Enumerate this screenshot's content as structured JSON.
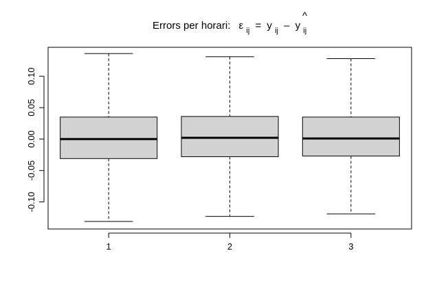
{
  "chart_data": {
    "type": "boxplot",
    "title": {
      "prefix": "Errors per horari:",
      "epsilon": "ε",
      "subscript1": "ij",
      "equals": "=",
      "y": "y",
      "subscript2": "ij",
      "minus": "–",
      "yhat_base": "y",
      "yhat_hat": "^",
      "subscript3": "ij"
    },
    "xlabel": "",
    "ylabel": "",
    "ylim": [
      -0.143,
      0.146
    ],
    "categories": [
      "1",
      "2",
      "3"
    ],
    "y_ticks": [
      {
        "value": -0.1,
        "label": "-0.10"
      },
      {
        "value": -0.05,
        "label": "-0.05"
      },
      {
        "value": 0.0,
        "label": "0.00"
      },
      {
        "value": 0.05,
        "label": "0.05"
      },
      {
        "value": 0.1,
        "label": "0.10"
      }
    ],
    "boxes": [
      {
        "category": "1",
        "whisker_low": -0.131,
        "q1": -0.031,
        "median": 0.0,
        "q3": 0.035,
        "whisker_high": 0.136
      },
      {
        "category": "2",
        "whisker_low": -0.123,
        "q1": -0.028,
        "median": 0.002,
        "q3": 0.036,
        "whisker_high": 0.131
      },
      {
        "category": "3",
        "whisker_low": -0.119,
        "q1": -0.027,
        "median": 0.001,
        "q3": 0.035,
        "whisker_high": 0.128
      }
    ],
    "box_fill": "#d3d3d3",
    "line_color": "#000000",
    "grid": false
  }
}
